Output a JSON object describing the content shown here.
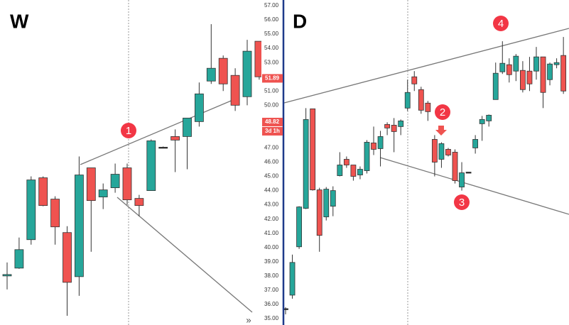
{
  "chart_data": [
    {
      "type": "candlestick",
      "title": "W",
      "open": [
        38.0,
        38.55,
        40.55,
        44.9,
        43.4,
        41.05,
        37.95,
        45.6,
        43.55,
        44.2,
        45.6,
        43.45,
        44.0,
        47.05,
        47.8,
        47.8,
        48.85,
        51.7,
        53.3,
        52.1,
        50.6,
        54.5
      ],
      "high": [
        38.95,
        40.7,
        45.0,
        45.0,
        43.6,
        41.5,
        46.4,
        45.6,
        44.5,
        45.9,
        45.9,
        43.7,
        47.6,
        47.1,
        48.3,
        49.1,
        51.6,
        55.7,
        53.5,
        52.6,
        54.6,
        54.5
      ],
      "low": [
        37.05,
        38.5,
        40.2,
        42.9,
        40.2,
        35.2,
        36.6,
        39.7,
        42.7,
        43.85,
        43.0,
        42.2,
        44.0,
        47.0,
        45.3,
        45.5,
        48.5,
        51.5,
        51.0,
        49.6,
        50.0,
        51.8
      ],
      "close": [
        38.1,
        39.85,
        44.75,
        42.95,
        41.45,
        37.55,
        45.1,
        43.3,
        44.05,
        45.15,
        43.35,
        42.95,
        47.5,
        47.05,
        47.55,
        49.1,
        50.8,
        52.6,
        51.5,
        50.0,
        53.8,
        52.0
      ],
      "up_color": "#26a69a",
      "down_color": "#ef5350",
      "ylim": [
        35,
        57
      ],
      "last_price": {
        "value": 51.89,
        "label": "51.89"
      },
      "annotations": [
        "1"
      ],
      "scroll_button": "»"
    },
    {
      "type": "candlestick",
      "title": "D",
      "open": [
        35.7,
        36.65,
        40.05,
        42.75,
        49.75,
        44.05,
        42.15,
        42.9,
        45.05,
        46.2,
        45.8,
        45.1,
        45.4,
        47.35,
        46.95,
        48.65,
        48.6,
        48.5,
        49.8,
        52.0,
        51.1,
        50.15,
        47.6,
        46.2,
        46.9,
        46.7,
        44.25,
        45.3,
        47.0,
        48.7,
        48.9,
        50.4,
        52.35,
        52.85,
        52.4,
        52.45,
        52.4,
        52.4,
        53.4,
        51.8,
        52.85,
        53.5
      ],
      "high": [
        35.8,
        39.5,
        42.9,
        49.8,
        49.75,
        44.2,
        44.25,
        44.3,
        46.7,
        46.4,
        45.8,
        45.7,
        47.55,
        48.5,
        48.2,
        48.8,
        49.1,
        49.0,
        51.8,
        52.4,
        51.3,
        50.3,
        47.9,
        47.4,
        47.0,
        46.9,
        46.0,
        45.3,
        47.9,
        49.25,
        49.35,
        53.0,
        54.5,
        53.3,
        53.6,
        53.1,
        53.4,
        54.1,
        53.4,
        53.0,
        53.3,
        54.8
      ],
      "low": [
        35.3,
        36.4,
        39.9,
        42.7,
        44.0,
        39.7,
        41.9,
        42.2,
        45.0,
        45.6,
        44.7,
        44.8,
        45.2,
        46.5,
        45.7,
        47.9,
        46.7,
        47.9,
        49.6,
        51.0,
        49.4,
        48.9,
        45.0,
        45.6,
        46.4,
        44.5,
        44.0,
        45.3,
        46.6,
        47.5,
        48.5,
        50.4,
        52.2,
        51.6,
        51.7,
        50.9,
        51.0,
        51.8,
        49.8,
        51.4,
        52.6,
        50.8
      ],
      "close": [
        35.7,
        38.95,
        42.85,
        49.0,
        44.05,
        40.85,
        44.1,
        44.0,
        45.8,
        45.8,
        45.0,
        45.5,
        47.4,
        46.9,
        47.8,
        48.4,
        48.15,
        48.9,
        50.9,
        51.5,
        49.65,
        49.55,
        46.0,
        47.3,
        46.5,
        44.7,
        45.25,
        45.3,
        47.6,
        49.0,
        49.3,
        52.25,
        52.95,
        52.15,
        53.45,
        51.1,
        51.5,
        53.4,
        50.9,
        52.9,
        53.0,
        51.0
      ],
      "up_color": "#26a69a",
      "down_color": "#ef5350",
      "ylim": [
        35,
        57
      ],
      "yticks": [
        {
          "value": 35,
          "label": "35.00"
        },
        {
          "value": 36,
          "label": "36.00"
        },
        {
          "value": 37,
          "label": "37.00"
        },
        {
          "value": 38,
          "label": "38.00"
        },
        {
          "value": 39,
          "label": "39.00"
        },
        {
          "value": 40,
          "label": "40.00"
        },
        {
          "value": 41,
          "label": "41.00"
        },
        {
          "value": 42,
          "label": "42.00"
        },
        {
          "value": 43,
          "label": "43.00"
        },
        {
          "value": 44,
          "label": "44.00"
        },
        {
          "value": 45,
          "label": "45.00"
        },
        {
          "value": 46,
          "label": "46.00"
        },
        {
          "value": 47,
          "label": "47.00"
        },
        {
          "value": 50,
          "label": "50.00"
        },
        {
          "value": 51,
          "label": "51.00"
        },
        {
          "value": 53,
          "label": "53.00"
        },
        {
          "value": 54,
          "label": "54.00"
        },
        {
          "value": 55,
          "label": "55.00"
        },
        {
          "value": 56,
          "label": "56.00"
        },
        {
          "value": 57,
          "label": "57.00"
        }
      ],
      "last_price": {
        "value": 48.82,
        "label": "48.82"
      },
      "countdown": "3d 1h",
      "annotations": [
        "2",
        "3",
        "4"
      ]
    }
  ]
}
